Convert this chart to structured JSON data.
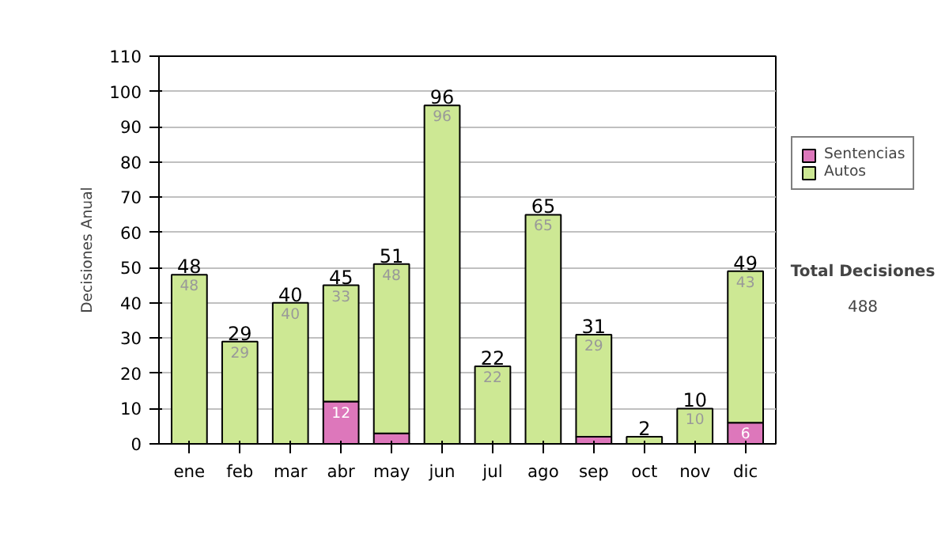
{
  "chart_data": {
    "type": "bar",
    "stacked": true,
    "ylabel": "Decisiones Anual",
    "categories": [
      "ene",
      "feb",
      "mar",
      "abr",
      "may",
      "jun",
      "jul",
      "ago",
      "sep",
      "oct",
      "nov",
      "dic"
    ],
    "series": [
      {
        "name": "Sentencias",
        "color": "#dd77bb",
        "values": [
          0,
          0,
          0,
          12,
          3,
          0,
          0,
          0,
          2,
          0,
          0,
          6
        ],
        "value_labels": [
          null,
          null,
          null,
          "12",
          null,
          null,
          null,
          null,
          null,
          null,
          null,
          "6"
        ]
      },
      {
        "name": "Autos",
        "color": "#cde894",
        "values": [
          48,
          29,
          40,
          33,
          48,
          96,
          22,
          65,
          29,
          2,
          10,
          43
        ],
        "value_labels": [
          "48",
          "29",
          "40",
          "33",
          "48",
          "96",
          "22",
          "65",
          "29",
          null,
          "10",
          "43"
        ]
      }
    ],
    "totals": [
      "48",
      "29",
      "40",
      "45",
      "51",
      "96",
      "22",
      "65",
      "31",
      "2",
      "10",
      "49"
    ],
    "ylim": [
      0,
      110
    ],
    "yticks": [
      0,
      10,
      20,
      30,
      40,
      50,
      60,
      70,
      80,
      90,
      100,
      110
    ],
    "grid": "y",
    "legend": "right",
    "annotations": [
      "Total Decisiones",
      "488"
    ]
  }
}
